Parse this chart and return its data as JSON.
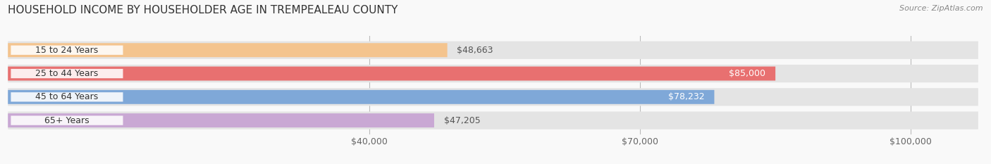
{
  "title": "HOUSEHOLD INCOME BY HOUSEHOLDER AGE IN TREMPEALEAU COUNTY",
  "source": "Source: ZipAtlas.com",
  "categories": [
    "15 to 24 Years",
    "25 to 44 Years",
    "45 to 64 Years",
    "65+ Years"
  ],
  "values": [
    48663,
    85000,
    78232,
    47205
  ],
  "bar_colors": [
    "#f4c48e",
    "#e87070",
    "#7fa8d8",
    "#c9a8d4"
  ],
  "label_colors": [
    "#555555",
    "#ffffff",
    "#ffffff",
    "#555555"
  ],
  "value_labels": [
    "$48,663",
    "$85,000",
    "$78,232",
    "$47,205"
  ],
  "x_ticks": [
    40000,
    70000,
    100000
  ],
  "x_tick_labels": [
    "$40,000",
    "$70,000",
    "$100,000"
  ],
  "xlim": [
    0,
    108000
  ],
  "title_fontsize": 11,
  "source_fontsize": 8,
  "label_fontsize": 9,
  "value_fontsize": 9,
  "tick_fontsize": 9,
  "background_color": "#f9f9f9",
  "bg_bar_color": "#e4e4e4"
}
